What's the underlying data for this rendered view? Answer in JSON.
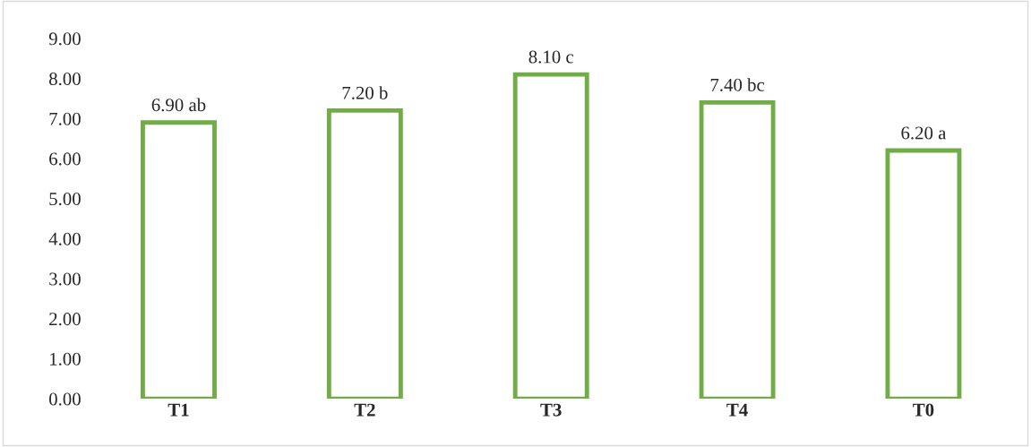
{
  "chart_data": {
    "type": "bar",
    "categories": [
      "T1",
      "T2",
      "T3",
      "T4",
      "T0"
    ],
    "values": [
      6.9,
      7.2,
      8.1,
      7.4,
      6.2
    ],
    "value_labels": [
      "6.90 ab",
      "7.20 b",
      "8.10 c",
      "7.40 bc",
      "6.20 a"
    ],
    "color": "#70ad47",
    "ylim": [
      0,
      9
    ],
    "yticks": [
      {
        "value": 0,
        "label": "0.00"
      },
      {
        "value": 1,
        "label": "1.00"
      },
      {
        "value": 2,
        "label": "2.00"
      },
      {
        "value": 3,
        "label": "3.00"
      },
      {
        "value": 4,
        "label": "4.00"
      },
      {
        "value": 5,
        "label": "5.00"
      },
      {
        "value": 6,
        "label": "6.00"
      },
      {
        "value": 7,
        "label": "7.00"
      },
      {
        "value": 8,
        "label": "8.00"
      },
      {
        "value": 9,
        "label": "9.00"
      }
    ],
    "grid": false,
    "legend": false
  }
}
